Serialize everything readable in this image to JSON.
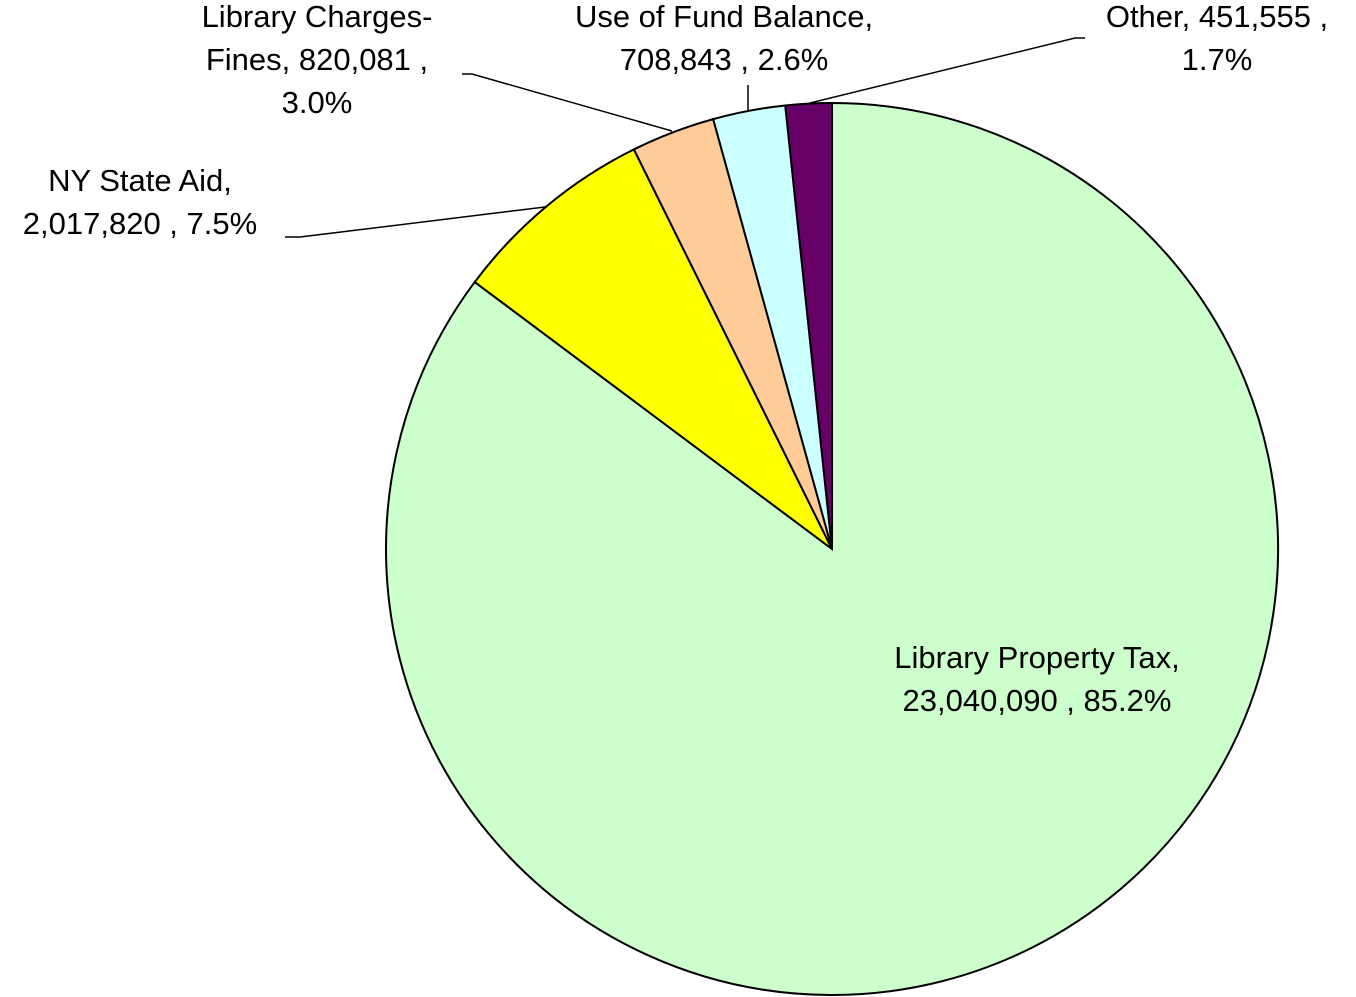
{
  "chart_data": {
    "type": "pie",
    "categories": [
      "Library Property Tax",
      "NY State Aid",
      "Library Charges-Fines",
      "Use of Fund Balance",
      "Other"
    ],
    "values": [
      23040090,
      2017820,
      820081,
      708843,
      451555
    ],
    "colors": [
      "#ccffcc",
      "#ffff00",
      "#ffcc99",
      "#ccffff",
      "#660066"
    ],
    "value_labels": [
      [
        "Library Property Tax,",
        "23,040,090 , 85.2%"
      ],
      [
        "NY State Aid,",
        "2,017,820 , 7.5%"
      ],
      [
        "Library Charges-",
        "Fines, 820,081 ,",
        "3.0%"
      ],
      [
        "Use of Fund Balance,",
        "708,843 , 2.6%"
      ],
      [
        "Other, 451,555 ,",
        "1.7%"
      ]
    ]
  }
}
